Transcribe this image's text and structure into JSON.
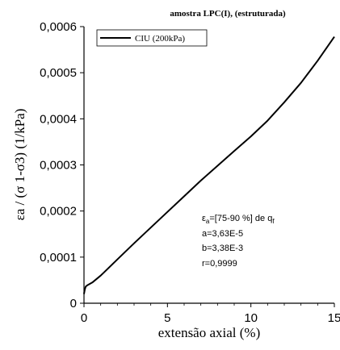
{
  "chart_data": {
    "type": "line",
    "title": "amostra LPC(I), (estruturada)",
    "xlabel": "extensão axial (%)",
    "ylabel": "εa / (σ 1-σ3) (1/kPa)",
    "xlim": [
      0,
      15
    ],
    "ylim": [
      0,
      0.0006
    ],
    "x_ticks": [
      0,
      5,
      10,
      15
    ],
    "x_tick_labels": [
      "0",
      "5",
      "10",
      "15"
    ],
    "y_ticks": [
      0,
      0.0001,
      0.0002,
      0.0003,
      0.0004,
      0.0005,
      0.0006
    ],
    "y_tick_labels": [
      "0",
      "0,0001",
      "0,0002",
      "0,0003",
      "0,0004",
      "0,0005",
      "0,0006"
    ],
    "grid": false,
    "legend_position": "top-left",
    "series": [
      {
        "name": "CIU (200kPa)",
        "color": "#000000",
        "x": [
          0,
          0.05,
          0.1,
          0.2,
          0.5,
          1,
          2,
          3,
          4,
          5,
          6,
          7,
          8,
          9,
          10,
          11,
          12,
          13,
          14,
          15
        ],
        "y": [
          2e-05,
          3e-05,
          3.6e-05,
          3.9e-05,
          4.5e-05,
          6e-05,
          9.5e-05,
          0.00013,
          0.000164,
          0.000198,
          0.000232,
          0.000266,
          0.000298,
          0.00033,
          0.000362,
          0.000396,
          0.000436,
          0.000478,
          0.000526,
          0.000578
        ]
      }
    ],
    "annotation": {
      "line1_prefix": "ε",
      "line1_sub": "a",
      "line1_rest": "=[75-90 %] de q",
      "line1_sub2": "f",
      "line2": "a=3,63E-5",
      "line3": "b=3,38E-3",
      "line4": "r=0,9999"
    }
  }
}
